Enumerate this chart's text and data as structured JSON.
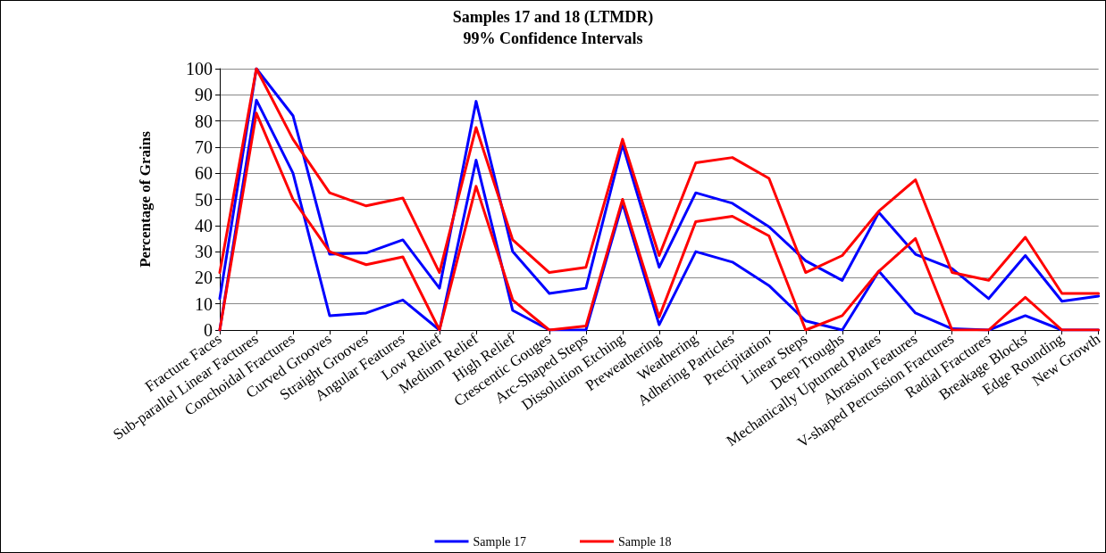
{
  "chart_data": {
    "type": "line",
    "title": "Samples 17 and 18 (LTMDR)",
    "subtitle": "99% Confidence Intervals",
    "ylabel": "Percentage of Grains",
    "categories": [
      "Fracture Faces",
      "Sub-parallel Linear Factures",
      "Conchoidal Fractures",
      "Curved Grooves",
      "Straight Grooves",
      "Angular Features",
      "Low Relief",
      "Medium Relief",
      "High Relief",
      "Crescentic Gouges",
      "Arc-Shaped Steps",
      "Dissolution Etching",
      "Preweathering",
      "Weathering",
      "Adhering Particles",
      "Precipitation",
      "Linear Steps",
      "Deep Troughs",
      "Mechanically Upturned Plates",
      "Abrasion Features",
      "V-shaped Percussion Fractures",
      "Radial Fractures",
      "Breakage Blocks",
      "Edge Rounding",
      "New Growth"
    ],
    "series": [
      {
        "name": "Sample 17",
        "color": "#0000ff",
        "values": [
          12,
          100,
          82,
          29,
          29.5,
          34.5,
          16,
          87.5,
          30,
          14,
          16,
          71,
          24,
          52.5,
          48.5,
          39.5,
          26.5,
          19,
          45,
          29,
          23.5,
          12,
          28.5,
          11,
          13
        ]
      },
      {
        "color": "#0000ff",
        "values": [
          0,
          88,
          60,
          5.5,
          6.5,
          11.5,
          0,
          65,
          7.5,
          0,
          0,
          48.5,
          2,
          30,
          26,
          17,
          3.5,
          0,
          22.5,
          6.5,
          0.5,
          0,
          5.5,
          0,
          0
        ]
      },
      {
        "name": "Sample 18",
        "color": "#ff0000",
        "values": [
          22,
          100,
          73,
          52.5,
          47.5,
          50.5,
          22,
          77.5,
          34.5,
          22,
          24,
          73,
          28.5,
          64,
          66,
          58,
          22,
          28.5,
          45.5,
          57.5,
          22,
          19,
          35.5,
          14,
          14
        ]
      },
      {
        "color": "#ff0000",
        "values": [
          0,
          83,
          50,
          30,
          25,
          28,
          0,
          55,
          11.5,
          0,
          1.5,
          50,
          5,
          41.5,
          43.5,
          36,
          0,
          5.5,
          22.5,
          35,
          0,
          0,
          12.5,
          0,
          0
        ]
      }
    ],
    "ylim": [
      0,
      100
    ],
    "yticks": [
      0,
      10,
      20,
      30,
      40,
      50,
      60,
      70,
      80,
      90,
      100
    ],
    "grid": "y",
    "legend": "bottom",
    "marker": "none",
    "line_style": "solid"
  }
}
